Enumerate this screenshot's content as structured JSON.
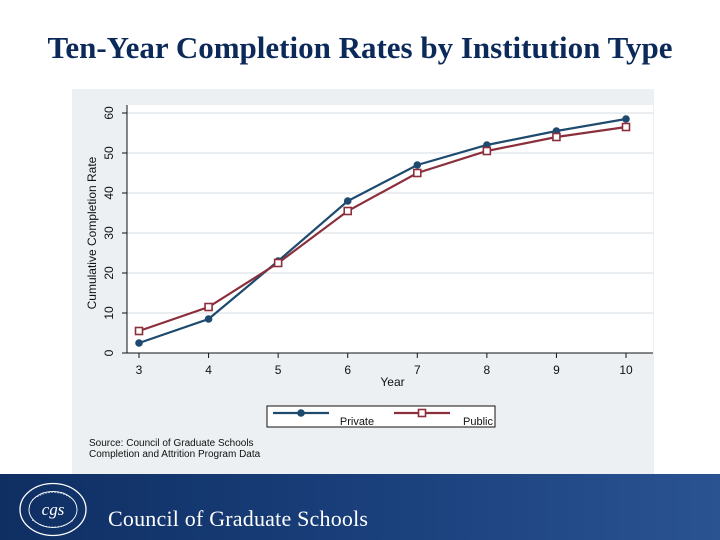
{
  "title": "Ten-Year Completion Rates by Institution Type",
  "chart_data": {
    "type": "line",
    "title": "Ten-Year Completion Rates by Institution Type",
    "xlabel": "Year",
    "ylabel": "Cumulative Completion Rate",
    "x": [
      3,
      4,
      5,
      6,
      7,
      8,
      9,
      10
    ],
    "xlim": [
      3,
      10
    ],
    "ylim": [
      0,
      60
    ],
    "yticks": [
      0,
      10,
      20,
      30,
      40,
      50,
      60
    ],
    "grid": true,
    "legend": "bottom",
    "series": [
      {
        "name": "Private",
        "color": "#1d4a6e",
        "marker": "filled-circle",
        "values": [
          2.5,
          8.5,
          23,
          38,
          47,
          52,
          55.5,
          58.5
        ]
      },
      {
        "name": "Public",
        "color": "#8b2f3c",
        "marker": "hollow-square",
        "values": [
          5.5,
          11.5,
          22.5,
          35.5,
          45,
          50.5,
          54,
          56.5
        ]
      }
    ]
  },
  "source_note": {
    "line1": "Source: Council of Graduate Schools",
    "line2": "Completion and Attrition Program Data"
  },
  "footer": {
    "org_name": "Council of Graduate Schools",
    "logo_text": "COUNCIL OF GRADUATE SCHOOLS",
    "logo_monogram": "cgs"
  }
}
